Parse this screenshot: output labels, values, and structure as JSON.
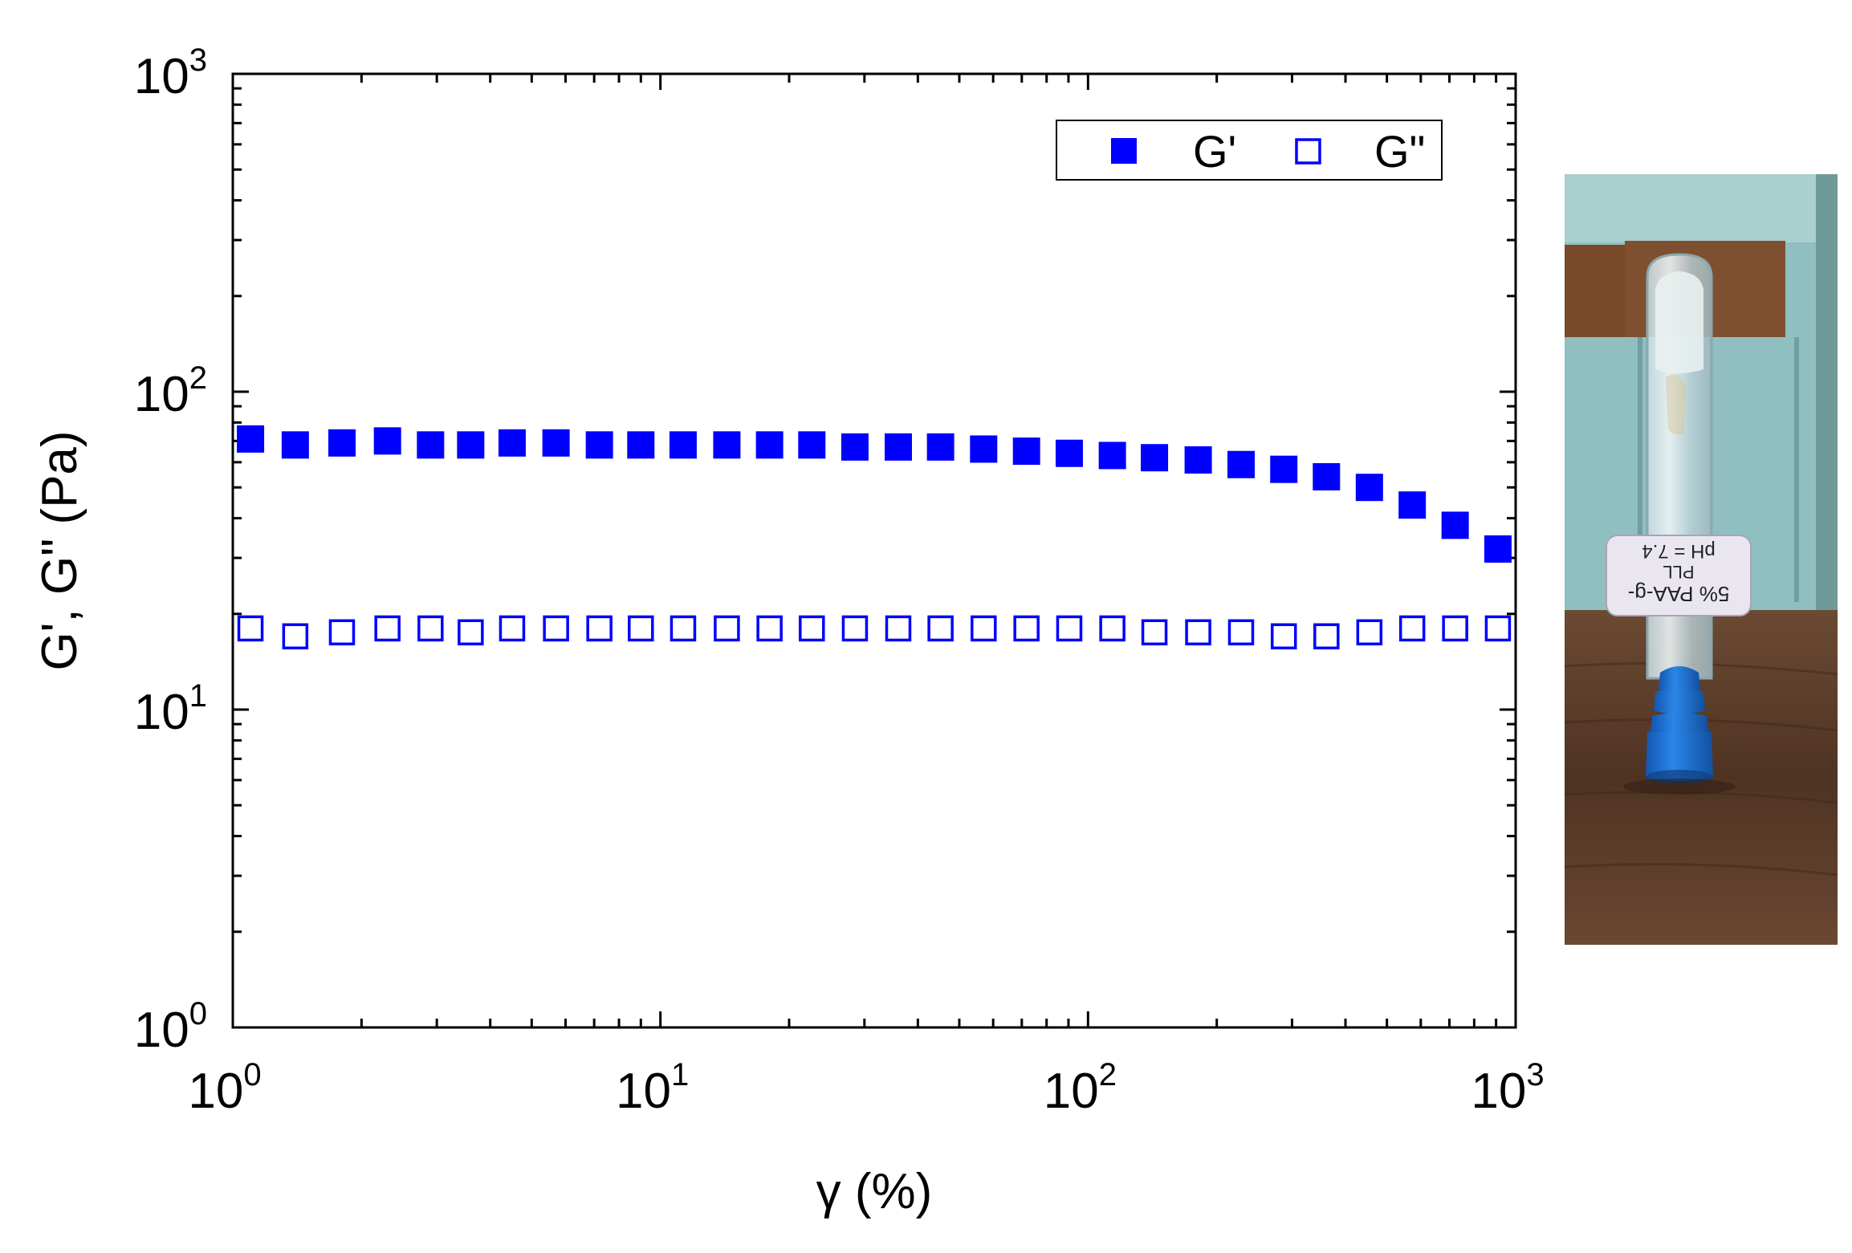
{
  "chart_data": {
    "type": "scatter",
    "xlabel": "γ (%)",
    "ylabel": "G', G\" (Pa)",
    "xscale": "log",
    "yscale": "log",
    "xlim": [
      1,
      1000
    ],
    "ylim": [
      1,
      1000
    ],
    "x_ticks": [
      {
        "base": "10",
        "exp": "0"
      },
      {
        "base": "10",
        "exp": "1"
      },
      {
        "base": "10",
        "exp": "2"
      },
      {
        "base": "10",
        "exp": "3"
      }
    ],
    "y_ticks": [
      {
        "base": "10",
        "exp": "0"
      },
      {
        "base": "10",
        "exp": "1"
      },
      {
        "base": "10",
        "exp": "2"
      },
      {
        "base": "10",
        "exp": "3"
      }
    ],
    "legend_position": "top-right",
    "grid": false,
    "x": [
      1.1,
      1.4,
      1.8,
      2.3,
      2.9,
      3.6,
      4.5,
      5.7,
      7.2,
      9.0,
      11.3,
      14.3,
      18.0,
      22.6,
      28.5,
      36.0,
      45.2,
      57.0,
      71.8,
      90.4,
      114,
      143,
      181,
      228,
      287,
      361,
      455,
      573,
      722,
      909
    ],
    "series": [
      {
        "name": "G'",
        "marker": "filled-square",
        "color": "#0000ff",
        "values": [
          71,
          68,
          69,
          70,
          68,
          68,
          69,
          69,
          68,
          68,
          68,
          68,
          68,
          68,
          67,
          67,
          67,
          66,
          65,
          64,
          63,
          62,
          61,
          59,
          57,
          54,
          50,
          44,
          38,
          32
        ]
      },
      {
        "name": "G\"",
        "marker": "open-square",
        "color": "#0000ff",
        "values": [
          18,
          17,
          17.5,
          18,
          18,
          17.5,
          18,
          18,
          18,
          18,
          18,
          18,
          18,
          18,
          18,
          18,
          18,
          18,
          18,
          18,
          18,
          17.5,
          17.5,
          17.5,
          17,
          17,
          17.5,
          18,
          18,
          18
        ]
      }
    ]
  },
  "photo": {
    "label_lines": [
      "5% PAA-g-",
      "PLL",
      "pH = 7.4"
    ],
    "colors": {
      "wall": "#8fbfc0",
      "wood_panel": "#7a4a28",
      "table": "#5a3a26",
      "cap": "#1d6fd0"
    }
  }
}
